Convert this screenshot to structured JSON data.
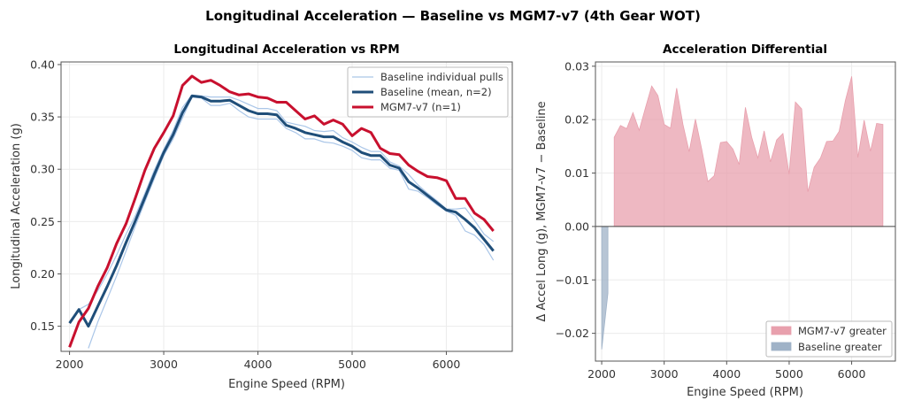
{
  "suptitle": "Longitudinal Acceleration — Baseline vs MGM7-v7 (4th Gear WOT)",
  "colors": {
    "mgm7": "#c8102e",
    "baseline_mean": "#1f4e79",
    "baseline_pull": "#aac6e8",
    "fill_pos": "#e8a0ad",
    "fill_neg": "#9fb2c7"
  },
  "chart_data": [
    {
      "type": "line",
      "title": "Longitudinal Acceleration vs RPM",
      "xlabel": "Engine Speed (RPM)",
      "ylabel": "Longitudinal Acceleration (g)",
      "xlim": [
        1910,
        6700
      ],
      "ylim": [
        0.126,
        0.4025
      ],
      "xticks": [
        2000,
        3000,
        4000,
        5000,
        6000
      ],
      "xtick_labels": [
        "2000",
        "3000",
        "4000",
        "5000",
        "6000"
      ],
      "yticks": [
        0.15,
        0.2,
        0.25,
        0.3,
        0.35,
        0.4
      ],
      "ytick_labels": [
        "0.15",
        "0.20",
        "0.25",
        "0.30",
        "0.35",
        "0.40"
      ],
      "grid": true,
      "legend_position": "top-right",
      "x": [
        2000,
        2100,
        2200,
        2300,
        2400,
        2500,
        2600,
        2700,
        2800,
        2900,
        3000,
        3100,
        3200,
        3300,
        3400,
        3500,
        3600,
        3700,
        3800,
        3900,
        4000,
        4100,
        4200,
        4300,
        4400,
        4500,
        4600,
        4700,
        4800,
        4900,
        5000,
        5100,
        5200,
        5300,
        5400,
        5500,
        5600,
        5700,
        5800,
        5900,
        6000,
        6100,
        6200,
        6300,
        6400,
        6500
      ],
      "series": [
        {
          "name": "Baseline individual pulls",
          "key": "pullA",
          "values": [
            0.153,
            0.166,
            0.171,
            0.184,
            0.2,
            0.218,
            0.238,
            0.256,
            0.277,
            0.299,
            0.319,
            0.337,
            0.359,
            0.371,
            0.37,
            0.369,
            0.369,
            0.369,
            0.366,
            0.362,
            0.358,
            0.358,
            0.356,
            0.345,
            0.343,
            0.341,
            0.337,
            0.336,
            0.337,
            0.33,
            0.326,
            0.321,
            0.317,
            0.317,
            0.307,
            0.303,
            0.295,
            0.285,
            0.277,
            0.27,
            0.262,
            0.262,
            0.263,
            0.251,
            0.238,
            0.231
          ]
        },
        {
          "key": "pullB",
          "values": [
            null,
            null,
            0.129,
            0.154,
            0.176,
            0.198,
            0.222,
            0.246,
            0.269,
            0.291,
            0.313,
            0.329,
            0.349,
            0.369,
            0.368,
            0.361,
            0.361,
            0.363,
            0.356,
            0.35,
            0.348,
            0.348,
            0.348,
            0.339,
            0.335,
            0.329,
            0.329,
            0.326,
            0.325,
            0.322,
            0.318,
            0.311,
            0.309,
            0.309,
            0.301,
            0.299,
            0.281,
            0.279,
            0.273,
            0.266,
            0.26,
            0.256,
            0.241,
            0.237,
            0.228,
            0.213
          ]
        },
        {
          "name": "Baseline (mean, n=2)",
          "key": "mean",
          "values": [
            0.153,
            0.166,
            0.15,
            0.169,
            0.188,
            0.208,
            0.23,
            0.251,
            0.273,
            0.295,
            0.316,
            0.333,
            0.354,
            0.37,
            0.369,
            0.365,
            0.365,
            0.366,
            0.361,
            0.356,
            0.353,
            0.353,
            0.352,
            0.342,
            0.339,
            0.335,
            0.333,
            0.331,
            0.331,
            0.326,
            0.322,
            0.316,
            0.313,
            0.313,
            0.304,
            0.301,
            0.288,
            0.282,
            0.275,
            0.268,
            0.261,
            0.259,
            0.252,
            0.244,
            0.233,
            0.222
          ]
        },
        {
          "name": "MGM7-v7 (n=1)",
          "key": "mgm7",
          "values": [
            0.13,
            0.154,
            0.167,
            0.188,
            0.206,
            0.229,
            0.248,
            0.273,
            0.299,
            0.32,
            0.335,
            0.351,
            0.38,
            0.389,
            0.383,
            0.385,
            0.38,
            0.374,
            0.371,
            0.372,
            0.369,
            0.368,
            0.364,
            0.364,
            0.356,
            0.348,
            0.351,
            0.343,
            0.347,
            0.343,
            0.332,
            0.339,
            0.335,
            0.32,
            0.315,
            0.314,
            0.304,
            0.298,
            0.293,
            0.292,
            0.289,
            0.272,
            0.272,
            0.258,
            0.252,
            0.241
          ]
        }
      ]
    },
    {
      "type": "area",
      "title": "Acceleration Differential",
      "xlabel": "Engine Speed (RPM)",
      "ylabel": "Δ Accel Long (g), MGM7-v7 − Baseline",
      "xlim": [
        1900,
        6700
      ],
      "ylim": [
        -0.0252,
        0.0308
      ],
      "xticks": [
        2000,
        3000,
        4000,
        5000,
        6000
      ],
      "xtick_labels": [
        "2000",
        "3000",
        "4000",
        "5000",
        "6000"
      ],
      "yticks": [
        -0.02,
        -0.01,
        0,
        0.01,
        0.02,
        0.03
      ],
      "ytick_labels": [
        "−0.02",
        "−0.01",
        "0.00",
        "0.01",
        "0.02",
        "0.03"
      ],
      "grid": true,
      "legend_position": "bottom-right",
      "legend": [
        "MGM7-v7 greater",
        "Baseline greater"
      ],
      "x": [
        2000,
        2100,
        2200,
        2300,
        2400,
        2500,
        2600,
        2700,
        2800,
        2900,
        3000,
        3100,
        3200,
        3300,
        3400,
        3500,
        3600,
        3700,
        3800,
        3900,
        4000,
        4100,
        4200,
        4300,
        4400,
        4500,
        4600,
        4700,
        4800,
        4900,
        5000,
        5100,
        5200,
        5300,
        5400,
        5500,
        5600,
        5700,
        5800,
        5900,
        6000,
        6100,
        6200,
        6300,
        6400,
        6500
      ],
      "values": [
        -0.023,
        -0.0125,
        0.0167,
        0.0189,
        0.0183,
        0.0213,
        0.018,
        0.0222,
        0.0263,
        0.0245,
        0.0191,
        0.0184,
        0.0259,
        0.0191,
        0.014,
        0.0201,
        0.0145,
        0.0084,
        0.0095,
        0.0157,
        0.0159,
        0.0145,
        0.0116,
        0.0223,
        0.0167,
        0.0128,
        0.0179,
        0.0121,
        0.0162,
        0.0174,
        0.0098,
        0.0233,
        0.022,
        0.0065,
        0.0111,
        0.0128,
        0.0159,
        0.016,
        0.0178,
        0.0236,
        0.0281,
        0.0129,
        0.0199,
        0.0141,
        0.0193,
        0.0191
      ]
    }
  ]
}
